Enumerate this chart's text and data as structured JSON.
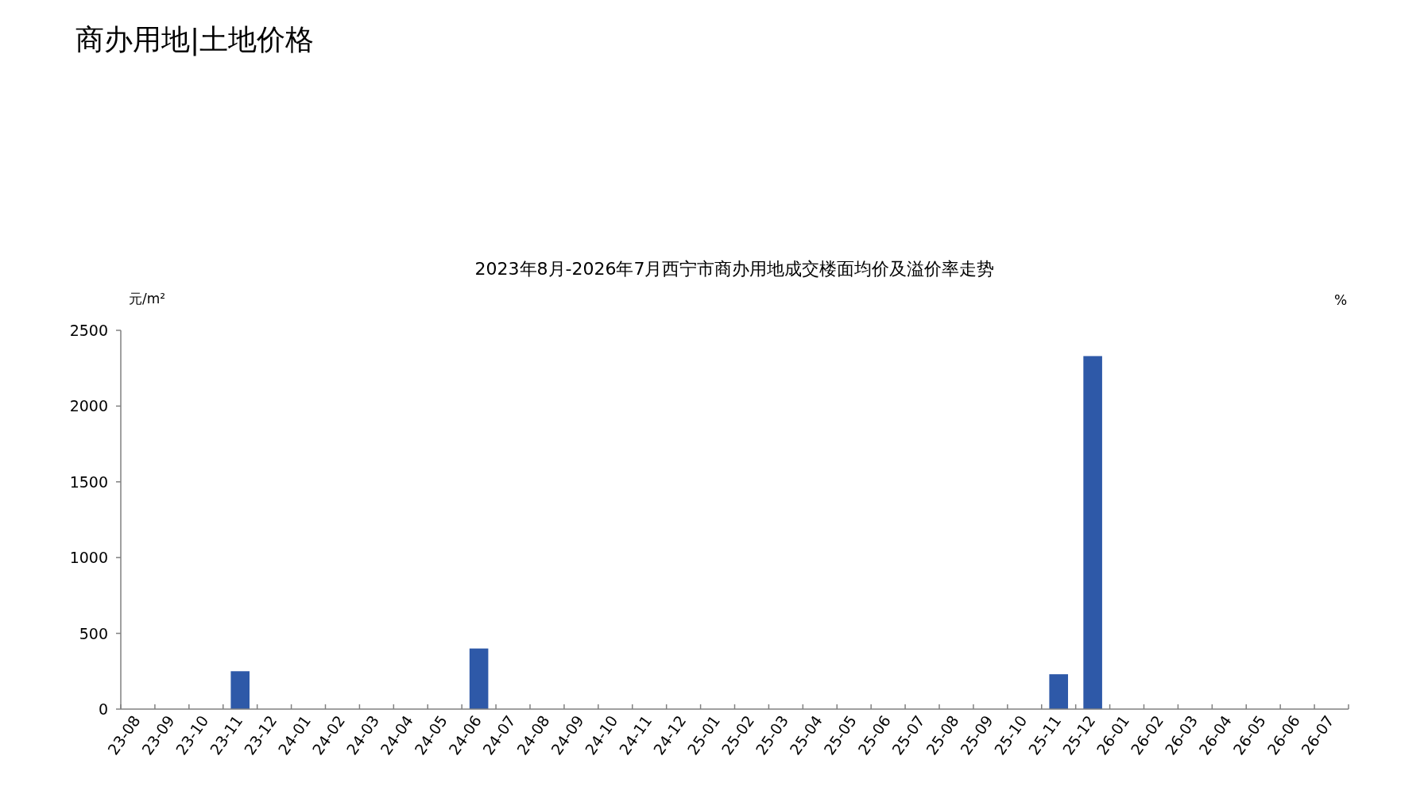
{
  "chart_data": {
    "type": "bar",
    "title": "2023年8月-2026年7月西宁市商办用地成交楼面均价及溢价率走势",
    "ylabel": "元/m²",
    "y2label": "%",
    "annotations": [
      "商办用地|土地价格"
    ],
    "categories": [
      "23-08",
      "23-09",
      "23-10",
      "23-11",
      "23-12",
      "24-01",
      "24-02",
      "24-03",
      "24-04",
      "24-05",
      "24-06",
      "24-07",
      "24-08",
      "24-09",
      "24-10",
      "24-11",
      "24-12",
      "25-01",
      "25-02",
      "25-03",
      "25-04",
      "25-05",
      "25-06",
      "25-07",
      "25-08",
      "25-09",
      "25-10",
      "25-11",
      "25-12",
      "26-01",
      "26-02",
      "26-03",
      "26-04",
      "26-05",
      "26-06",
      "26-07"
    ],
    "values": [
      null,
      null,
      null,
      250,
      null,
      null,
      null,
      null,
      null,
      null,
      400,
      null,
      null,
      null,
      null,
      null,
      null,
      null,
      null,
      null,
      null,
      null,
      null,
      null,
      null,
      null,
      null,
      230,
      2330,
      null,
      null,
      null,
      null,
      null,
      null,
      null
    ],
    "color": "#2e59a8",
    "ylim": [
      0,
      2500
    ],
    "yticks": [
      0,
      500,
      1000,
      1500,
      2000,
      2500
    ]
  }
}
